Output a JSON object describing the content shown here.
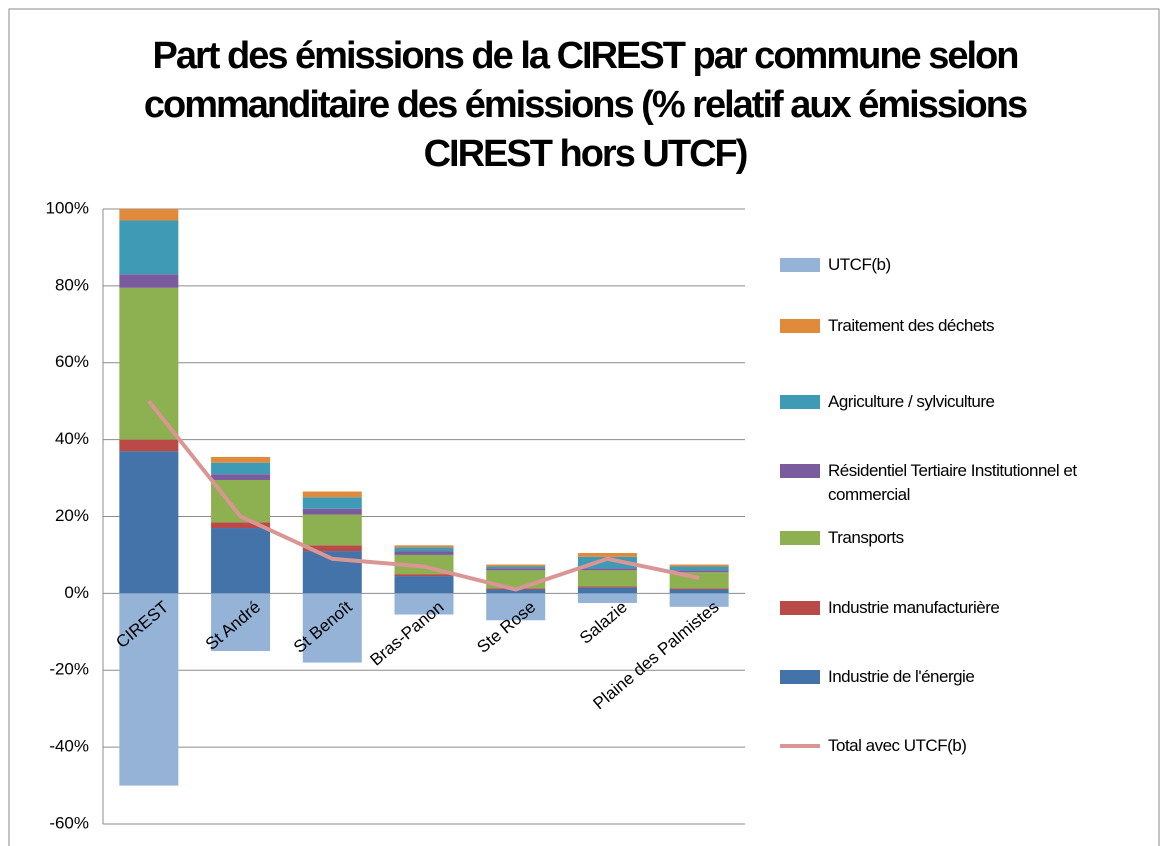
{
  "chart_data": {
    "type": "bar",
    "stacked": true,
    "title": "Part des émissions de la CIREST par commune selon commanditaire des émissions (% relatif aux émissions CIREST hors UTCF)",
    "categories": [
      "CIREST",
      "St André",
      "St Benoît",
      "Bras-Panon",
      "Ste Rose",
      "Salazie",
      "Plaine des Palmistes"
    ],
    "series": [
      {
        "name": "UTCF(b)",
        "color": "#95b3d7",
        "values": [
          -50,
          -15,
          -18,
          -5.5,
          -7,
          -2.5,
          -3.5
        ]
      },
      {
        "name": "Traitement des déchets",
        "color": "#e08a3c",
        "values": [
          3,
          1.5,
          1.5,
          0.5,
          0.5,
          1,
          0.5
        ]
      },
      {
        "name": "Agriculture / sylviculture",
        "color": "#3f9bb5",
        "values": [
          14,
          3,
          3,
          1,
          0.5,
          3,
          1
        ]
      },
      {
        "name": "Résidentiel Tertiaire Institutionnel et commercial",
        "color": "#7a5c9e",
        "values": [
          3.5,
          1.5,
          1.5,
          1,
          0.5,
          0.5,
          0.5
        ]
      },
      {
        "name": "Transports",
        "color": "#8db050",
        "values": [
          39.5,
          11,
          8,
          5,
          4.7,
          4.2,
          4.2
        ]
      },
      {
        "name": "Industrie manufacturière",
        "color": "#b94a48",
        "values": [
          3,
          1.5,
          1.5,
          0.5,
          0.3,
          0.3,
          0.3
        ]
      },
      {
        "name": "Industrie de l'énergie",
        "color": "#4473aa",
        "values": [
          37,
          17,
          11,
          4.5,
          1,
          1.5,
          1
        ]
      },
      {
        "name": "Total avec UTCF(b)",
        "color": "#d99694",
        "type": "line",
        "values": [
          50,
          20,
          9,
          7,
          1,
          9,
          4
        ]
      }
    ],
    "ylim": [
      -60,
      100
    ],
    "yticks": [
      {
        "value": -60,
        "label": "-60%"
      },
      {
        "value": -40,
        "label": "-40%"
      },
      {
        "value": -20,
        "label": "-20%"
      },
      {
        "value": 0,
        "label": "0%"
      },
      {
        "value": 20,
        "label": "20%"
      },
      {
        "value": 40,
        "label": "40%"
      },
      {
        "value": 60,
        "label": "60%"
      },
      {
        "value": 80,
        "label": "80%"
      },
      {
        "value": 100,
        "label": "100%"
      }
    ],
    "grid": true,
    "legend": "right"
  }
}
